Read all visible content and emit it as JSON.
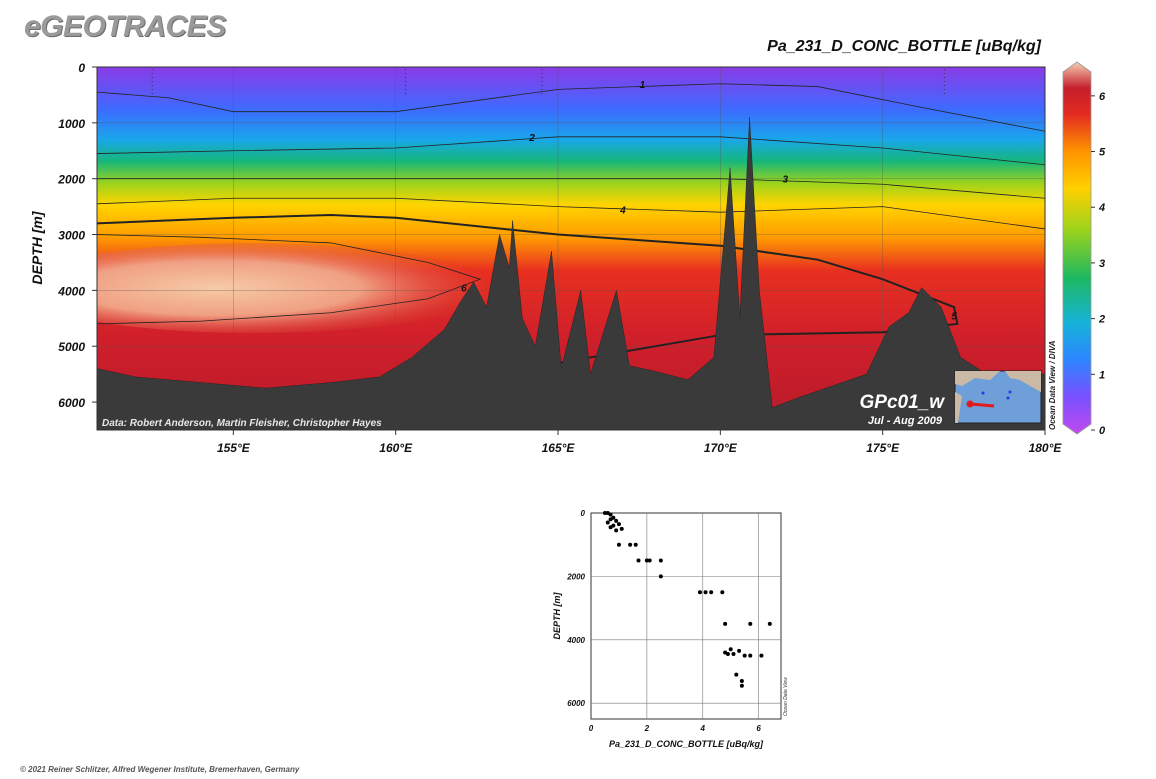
{
  "brand": "eGEOTRACES",
  "footer": "© 2021 Reiner Schlitzer, Alfred Wegener Institute, Bremerhaven, Germany",
  "chart_data": [
    {
      "type": "heatmap",
      "title": "Pa_231_D_CONC_BOTTLE [uBq/kg]",
      "ylabel": "DEPTH [m]",
      "xlabel": "",
      "x_ticks": [
        "155°E",
        "160°E",
        "165°E",
        "170°E",
        "175°E",
        "180°E"
      ],
      "x_tick_values": [
        155,
        160,
        165,
        170,
        175,
        180
      ],
      "xlim": [
        150.8,
        180
      ],
      "y_ticks": [
        "0",
        "1000",
        "2000",
        "3000",
        "4000",
        "5000",
        "6000"
      ],
      "y_tick_values": [
        0,
        1000,
        2000,
        3000,
        4000,
        5000,
        6000
      ],
      "ylim": [
        0,
        6500
      ],
      "y_inverted": true,
      "grid": true,
      "colorbar": {
        "label": "Ocean Data View / DIVA",
        "ticks": [
          "0",
          "1",
          "2",
          "3",
          "4",
          "5",
          "6"
        ],
        "range": [
          0,
          6.5
        ],
        "colors": [
          "#8a2be2",
          "#3a6dff",
          "#1aa3f0",
          "#10b36a",
          "#9bd21a",
          "#ffd000",
          "#ff9a00",
          "#e83020",
          "#c81e28",
          "#f5c7a4"
        ]
      },
      "contour_labels": [
        "1",
        "2",
        "3",
        "4",
        "5",
        "6"
      ],
      "data_credit": "Data: Robert Anderson, Martin Fleisher, Christopher Hayes",
      "cruise": "GPc01_w",
      "period": "Jul - Aug 2009",
      "stations_lon": [
        152.5,
        160.3,
        164.5,
        176.9
      ],
      "depth_profile": [
        {
          "lon": 150.8,
          "depth": 5400
        },
        {
          "lon": 152,
          "depth": 5550
        },
        {
          "lon": 154,
          "depth": 5650
        },
        {
          "lon": 156,
          "depth": 5750
        },
        {
          "lon": 158,
          "depth": 5650
        },
        {
          "lon": 159.5,
          "depth": 5550
        },
        {
          "lon": 160.5,
          "depth": 5200
        },
        {
          "lon": 161.5,
          "depth": 4700
        },
        {
          "lon": 162,
          "depth": 4200
        },
        {
          "lon": 162.4,
          "depth": 3850
        },
        {
          "lon": 162.8,
          "depth": 4300
        },
        {
          "lon": 163.2,
          "depth": 3000
        },
        {
          "lon": 163.5,
          "depth": 3600
        },
        {
          "lon": 163.6,
          "depth": 2750
        },
        {
          "lon": 163.9,
          "depth": 4500
        },
        {
          "lon": 164.3,
          "depth": 5000
        },
        {
          "lon": 164.8,
          "depth": 3300
        },
        {
          "lon": 165.1,
          "depth": 5400
        },
        {
          "lon": 165.7,
          "depth": 4000
        },
        {
          "lon": 166,
          "depth": 5500
        },
        {
          "lon": 166.8,
          "depth": 4000
        },
        {
          "lon": 167.2,
          "depth": 5350
        },
        {
          "lon": 168,
          "depth": 5450
        },
        {
          "lon": 169,
          "depth": 5600
        },
        {
          "lon": 169.8,
          "depth": 5200
        },
        {
          "lon": 170.3,
          "depth": 1800
        },
        {
          "lon": 170.6,
          "depth": 4500
        },
        {
          "lon": 170.9,
          "depth": 900
        },
        {
          "lon": 171.2,
          "depth": 4000
        },
        {
          "lon": 171.6,
          "depth": 6100
        },
        {
          "lon": 172.5,
          "depth": 5900
        },
        {
          "lon": 173.5,
          "depth": 5700
        },
        {
          "lon": 174.5,
          "depth": 5500
        },
        {
          "lon": 175.2,
          "depth": 4650
        },
        {
          "lon": 175.8,
          "depth": 4400
        },
        {
          "lon": 176.2,
          "depth": 3950
        },
        {
          "lon": 176.8,
          "depth": 4300
        },
        {
          "lon": 177.4,
          "depth": 5200
        },
        {
          "lon": 178.2,
          "depth": 5500
        },
        {
          "lon": 180,
          "depth": 5500
        }
      ],
      "contours": [
        {
          "value": 1,
          "lon": [
            150.8,
            153,
            155,
            160,
            165,
            170,
            173,
            176,
            180
          ],
          "depth": [
            450,
            550,
            800,
            800,
            400,
            300,
            350,
            700,
            1150
          ]
        },
        {
          "value": 2,
          "lon": [
            150.8,
            155,
            160,
            165,
            170,
            175,
            180
          ],
          "depth": [
            1550,
            1500,
            1450,
            1250,
            1250,
            1450,
            1750
          ]
        },
        {
          "value": 3,
          "lon": [
            150.8,
            155,
            160,
            165,
            170,
            175,
            180
          ],
          "depth": [
            2000,
            2000,
            2000,
            2000,
            2000,
            2100,
            2350
          ]
        },
        {
          "value": 4,
          "lon": [
            150.8,
            155,
            160,
            165,
            170,
            175,
            180
          ],
          "depth": [
            2450,
            2350,
            2350,
            2500,
            2600,
            2500,
            2900
          ]
        },
        {
          "value": 5,
          "lon": [
            150.8,
            155,
            158,
            160,
            165,
            170,
            173,
            175,
            177.2,
            177.3,
            175,
            170,
            167,
            165
          ],
          "depth": [
            2800,
            2700,
            2650,
            2700,
            3000,
            3200,
            3450,
            3800,
            4300,
            4600,
            4750,
            4800,
            5100,
            5300
          ]
        },
        {
          "value": 6,
          "lon": [
            150.8,
            154,
            158,
            161,
            162.6,
            161,
            158,
            154,
            150.8
          ],
          "depth": [
            3000,
            3050,
            3150,
            3500,
            3800,
            4150,
            4400,
            4550,
            4600
          ]
        }
      ]
    },
    {
      "type": "scatter",
      "title": "",
      "xlabel": "Pa_231_D_CONC_BOTTLE [uBq/kg]",
      "ylabel": "DEPTH [m]",
      "xlim": [
        0,
        6.8
      ],
      "ylim": [
        0,
        6500
      ],
      "y_inverted": true,
      "x_ticks": [
        0,
        2,
        4,
        6
      ],
      "y_ticks": [
        0,
        2000,
        4000,
        6000
      ],
      "grid": true,
      "credit": "Ocean Data View",
      "points": [
        {
          "x": 0.5,
          "y": 0
        },
        {
          "x": 0.6,
          "y": 0
        },
        {
          "x": 0.7,
          "y": 50
        },
        {
          "x": 0.8,
          "y": 150
        },
        {
          "x": 0.7,
          "y": 200
        },
        {
          "x": 0.9,
          "y": 250
        },
        {
          "x": 0.6,
          "y": 300
        },
        {
          "x": 1.0,
          "y": 350
        },
        {
          "x": 0.8,
          "y": 400
        },
        {
          "x": 0.7,
          "y": 450
        },
        {
          "x": 1.1,
          "y": 500
        },
        {
          "x": 0.9,
          "y": 550
        },
        {
          "x": 1.0,
          "y": 1000
        },
        {
          "x": 1.4,
          "y": 1000
        },
        {
          "x": 1.6,
          "y": 1000
        },
        {
          "x": 1.7,
          "y": 1500
        },
        {
          "x": 2.0,
          "y": 1500
        },
        {
          "x": 2.1,
          "y": 1500
        },
        {
          "x": 2.5,
          "y": 1500
        },
        {
          "x": 2.5,
          "y": 2000
        },
        {
          "x": 3.9,
          "y": 2500
        },
        {
          "x": 4.1,
          "y": 2500
        },
        {
          "x": 4.3,
          "y": 2500
        },
        {
          "x": 4.7,
          "y": 2500
        },
        {
          "x": 4.8,
          "y": 3500
        },
        {
          "x": 5.7,
          "y": 3500
        },
        {
          "x": 6.4,
          "y": 3500
        },
        {
          "x": 4.8,
          "y": 4400
        },
        {
          "x": 5.0,
          "y": 4300
        },
        {
          "x": 4.9,
          "y": 4450
        },
        {
          "x": 5.3,
          "y": 4350
        },
        {
          "x": 5.5,
          "y": 4500
        },
        {
          "x": 5.7,
          "y": 4500
        },
        {
          "x": 6.1,
          "y": 4500
        },
        {
          "x": 5.2,
          "y": 5100
        },
        {
          "x": 5.4,
          "y": 5300
        },
        {
          "x": 5.4,
          "y": 5450
        },
        {
          "x": 5.1,
          "y": 4450
        }
      ]
    }
  ]
}
